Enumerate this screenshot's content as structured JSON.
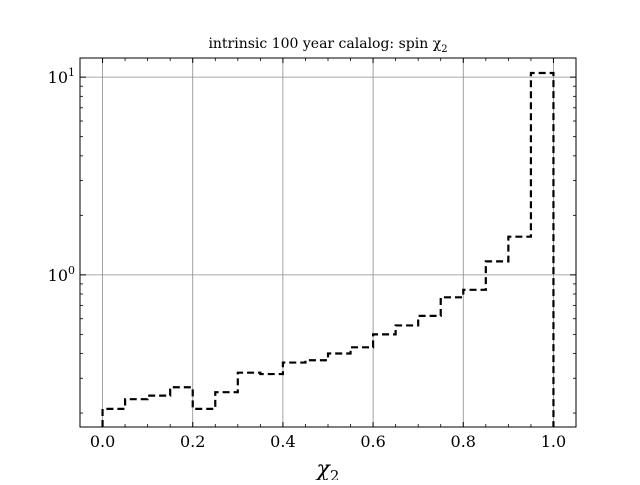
{
  "chart_data": {
    "type": "histogram",
    "title": "intrinsic 100 year calalog: spin χ",
    "title_subscript": "2",
    "xlabel": "χ",
    "xlabel_subscript": "2",
    "ylabel": "",
    "xlim": [
      -0.05,
      1.05
    ],
    "ylim": [
      0.17,
      12.5
    ],
    "yscale": "log",
    "grid": true,
    "x_ticks": [
      {
        "value": 0.0,
        "label": "0.0"
      },
      {
        "value": 0.2,
        "label": "0.2"
      },
      {
        "value": 0.4,
        "label": "0.4"
      },
      {
        "value": 0.6,
        "label": "0.6"
      },
      {
        "value": 0.8,
        "label": "0.8"
      },
      {
        "value": 1.0,
        "label": "1.0"
      }
    ],
    "y_ticks": [
      {
        "value": 1,
        "base": "10",
        "exponent": "0"
      },
      {
        "value": 10,
        "base": "10",
        "exponent": "1"
      }
    ],
    "bin_edges": [
      0.0,
      0.05,
      0.1,
      0.15,
      0.2,
      0.25,
      0.3,
      0.35,
      0.4,
      0.45,
      0.5,
      0.55,
      0.6,
      0.65,
      0.7,
      0.75,
      0.8,
      0.85,
      0.9,
      0.95,
      1.0
    ],
    "series": [
      {
        "style": "dashed",
        "color": "#000000",
        "values": [
          0.21,
          0.235,
          0.245,
          0.27,
          0.21,
          0.255,
          0.32,
          0.315,
          0.36,
          0.37,
          0.4,
          0.43,
          0.5,
          0.555,
          0.62,
          0.77,
          0.84,
          1.17,
          1.56,
          10.5
        ]
      }
    ]
  }
}
